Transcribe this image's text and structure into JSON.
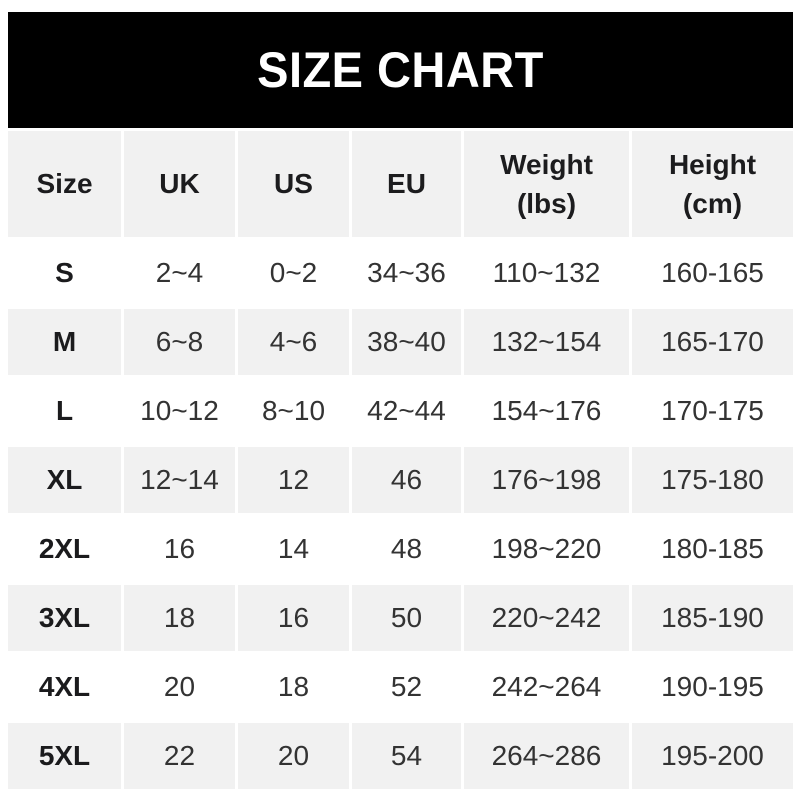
{
  "banner": {
    "title": "SIZE CHART",
    "background_color": "#000000",
    "text_color": "#ffffff"
  },
  "chart_data": {
    "type": "table",
    "title": "SIZE CHART",
    "columns": [
      "Size",
      "UK",
      "US",
      "EU",
      "Weight\n(lbs)",
      "Height\n(cm)"
    ],
    "rows": [
      {
        "size": "S",
        "uk": "2~4",
        "us": "0~2",
        "eu": "34~36",
        "weight_lbs": "110~132",
        "height_cm": "160-165"
      },
      {
        "size": "M",
        "uk": "6~8",
        "us": "4~6",
        "eu": "38~40",
        "weight_lbs": "132~154",
        "height_cm": "165-170"
      },
      {
        "size": "L",
        "uk": "10~12",
        "us": "8~10",
        "eu": "42~44",
        "weight_lbs": "154~176",
        "height_cm": "170-175"
      },
      {
        "size": "XL",
        "uk": "12~14",
        "us": "12",
        "eu": "46",
        "weight_lbs": "176~198",
        "height_cm": "175-180"
      },
      {
        "size": "2XL",
        "uk": "16",
        "us": "14",
        "eu": "48",
        "weight_lbs": "198~220",
        "height_cm": "180-185"
      },
      {
        "size": "3XL",
        "uk": "18",
        "us": "16",
        "eu": "50",
        "weight_lbs": "220~242",
        "height_cm": "185-190"
      },
      {
        "size": "4XL",
        "uk": "20",
        "us": "18",
        "eu": "52",
        "weight_lbs": "242~264",
        "height_cm": "190-195"
      },
      {
        "size": "5XL",
        "uk": "22",
        "us": "20",
        "eu": "54",
        "weight_lbs": "264~286",
        "height_cm": "195-200"
      }
    ],
    "layout_hints": {
      "header_row_background": "#f1f1f1",
      "stripe_background": "#f1f1f1",
      "gridline_color": "#ffffff",
      "striped_rows": true,
      "first_data_row_background": "#ffffff"
    }
  }
}
